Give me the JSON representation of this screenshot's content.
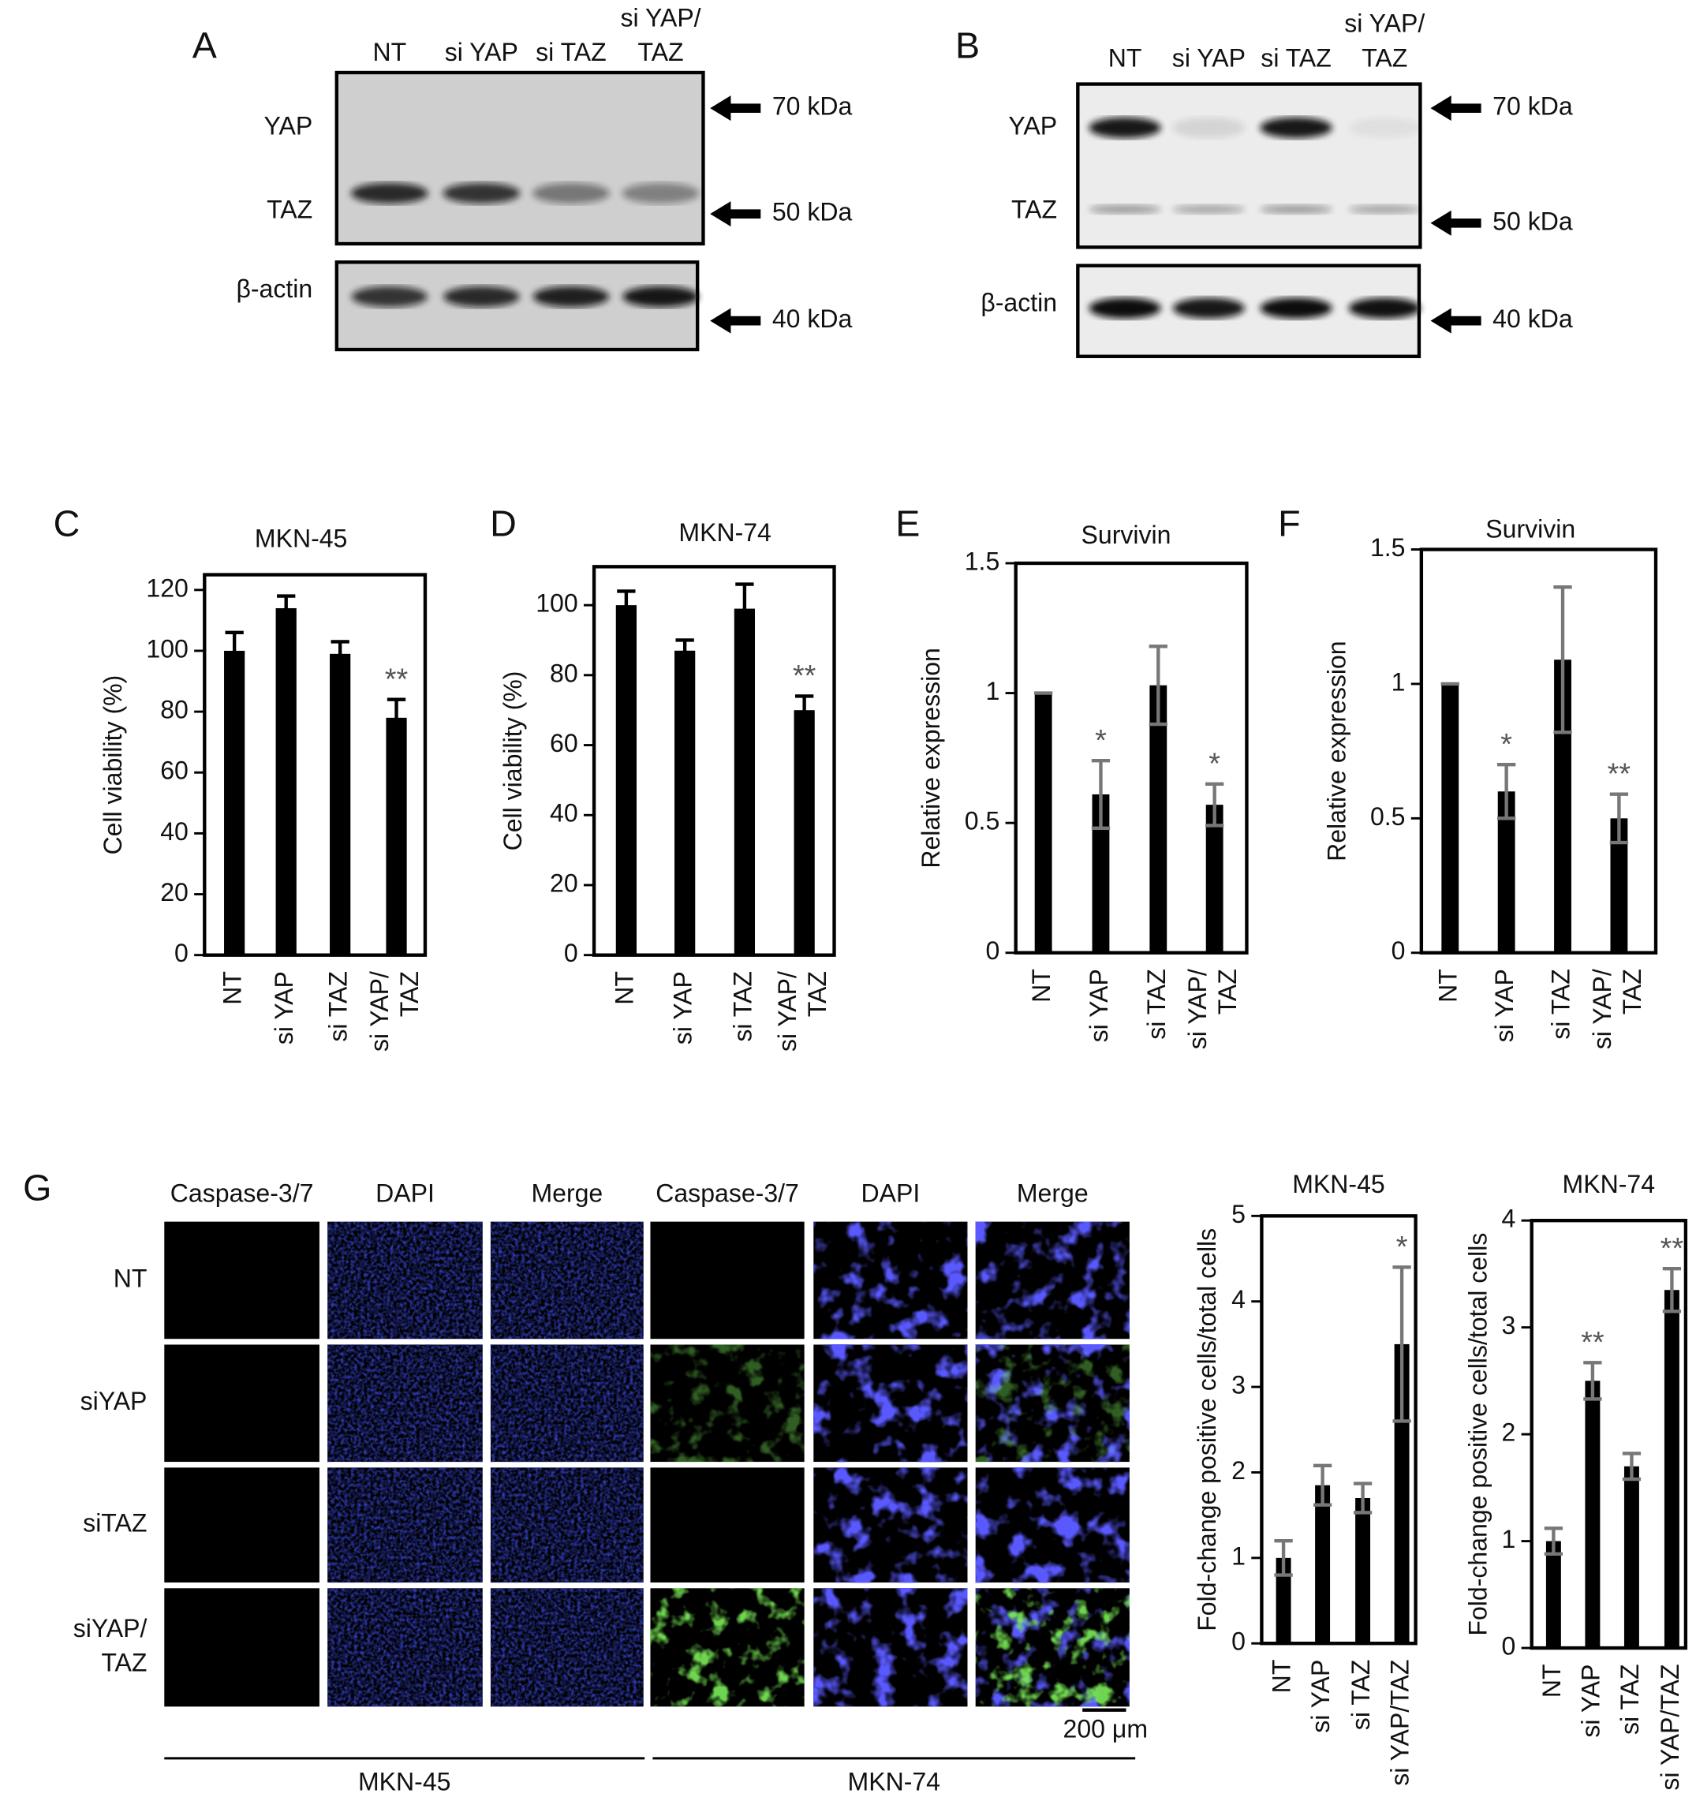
{
  "blots": [
    {
      "letter": "A",
      "lanes": [
        [
          "NT"
        ],
        [
          "si YAP"
        ],
        [
          "si TAZ"
        ],
        [
          "si YAP/",
          "TAZ"
        ]
      ],
      "proteins": [
        "YAP",
        "TAZ",
        "β-actin"
      ],
      "markers": [
        "70 kDa",
        "50 kDa",
        "40 kDa"
      ]
    },
    {
      "letter": "B",
      "lanes": [
        [
          "NT"
        ],
        [
          "si YAP"
        ],
        [
          "si TAZ"
        ],
        [
          "si YAP/",
          "TAZ"
        ]
      ],
      "proteins": [
        "YAP",
        "TAZ",
        "β-actin"
      ],
      "markers": [
        "70 kDa",
        "50 kDa",
        "40 kDa"
      ]
    }
  ],
  "microscopy": {
    "letter": "G",
    "columns": [
      "Caspase-3/7",
      "DAPI",
      "Merge",
      "Caspase-3/7",
      "DAPI",
      "Merge"
    ],
    "rows": [
      [
        "NT"
      ],
      [
        "siYAP"
      ],
      [
        "siTAZ"
      ],
      [
        "siYAP/",
        "TAZ"
      ]
    ],
    "scale_bar": "200 μm",
    "cell_lines": [
      "MKN-45",
      "MKN-74"
    ]
  },
  "chart_data": [
    {
      "type": "bar",
      "letter": "C",
      "title": "MKN-45",
      "y_label": "Cell viability (%)",
      "categories": [
        [
          "NT"
        ],
        [
          "si YAP"
        ],
        [
          "si TAZ"
        ],
        [
          "si YAP/",
          "TAZ"
        ]
      ],
      "values": [
        100,
        114,
        99,
        78
      ],
      "errors": [
        6,
        4,
        4,
        6
      ],
      "annotations": [
        null,
        null,
        null,
        "**"
      ],
      "color": "#000000",
      "error_color": "#000000",
      "ylim": [
        0,
        125
      ],
      "yticks": [
        0,
        20,
        40,
        60,
        80,
        100,
        120
      ]
    },
    {
      "type": "bar",
      "letter": "D",
      "title": "MKN-74",
      "y_label": "Cell viability (%)",
      "categories": [
        [
          "NT"
        ],
        [
          "si YAP"
        ],
        [
          "si TAZ"
        ],
        [
          "si YAP/",
          "TAZ"
        ]
      ],
      "values": [
        100,
        87,
        99,
        70
      ],
      "errors": [
        4,
        3,
        7,
        4
      ],
      "annotations": [
        null,
        null,
        null,
        "**"
      ],
      "color": "#000000",
      "error_color": "#000000",
      "ylim": [
        0,
        111
      ],
      "yticks": [
        0,
        20,
        40,
        60,
        80,
        100
      ]
    },
    {
      "type": "bar",
      "letter": "E",
      "title": "Survivin",
      "y_label": "Relative expression",
      "categories": [
        [
          "NT"
        ],
        [
          "si YAP"
        ],
        [
          "si TAZ"
        ],
        [
          "si YAP/",
          "TAZ"
        ]
      ],
      "values": [
        1,
        0.61,
        1.03,
        0.57
      ],
      "errors": [
        0,
        0.13,
        0.15,
        0.08
      ],
      "annotations": [
        null,
        "*",
        null,
        "*"
      ],
      "color": "#000000",
      "error_color": "#777777",
      "ylim": [
        0,
        1.5
      ],
      "yticks": [
        0,
        0.5,
        1,
        1.5
      ]
    },
    {
      "type": "bar",
      "letter": "F",
      "title": "Survivin",
      "y_label": "Relative expression",
      "categories": [
        [
          "NT"
        ],
        [
          "si YAP"
        ],
        [
          "si TAZ"
        ],
        [
          "si YAP/",
          "TAZ"
        ]
      ],
      "values": [
        1,
        0.6,
        1.09,
        0.5
      ],
      "errors": [
        0,
        0.1,
        0.27,
        0.09
      ],
      "annotations": [
        null,
        "*",
        null,
        "**"
      ],
      "color": "#000000",
      "error_color": "#777777",
      "ylim": [
        0,
        1.5
      ],
      "yticks": [
        0,
        0.5,
        1,
        1.5
      ]
    },
    {
      "type": "bar",
      "title": "MKN-45",
      "y_label": "Fold-change positive cells/total cells",
      "categories": [
        [
          "NT"
        ],
        [
          "si YAP"
        ],
        [
          "si TAZ"
        ],
        [
          "si YAP/TAZ"
        ]
      ],
      "values": [
        1,
        1.85,
        1.7,
        3.5
      ],
      "errors": [
        0.2,
        0.23,
        0.17,
        0.9
      ],
      "annotations": [
        null,
        null,
        null,
        "*"
      ],
      "color": "#000000",
      "error_color": "#777777",
      "ylim": [
        0,
        5
      ],
      "yticks": [
        0,
        1,
        2,
        3,
        4,
        5
      ]
    },
    {
      "type": "bar",
      "title": "MKN-74",
      "y_label": "Fold-change positive cells/total cells",
      "categories": [
        [
          "NT"
        ],
        [
          "si YAP"
        ],
        [
          "si TAZ"
        ],
        [
          "si YAP/TAZ"
        ]
      ],
      "values": [
        1,
        2.5,
        1.7,
        3.35
      ],
      "errors": [
        0.12,
        0.17,
        0.12,
        0.2
      ],
      "annotations": [
        null,
        "**",
        null,
        "**"
      ],
      "color": "#000000",
      "error_color": "#777777",
      "ylim": [
        0,
        4
      ],
      "yticks": [
        0,
        1,
        2,
        3,
        4
      ]
    }
  ]
}
